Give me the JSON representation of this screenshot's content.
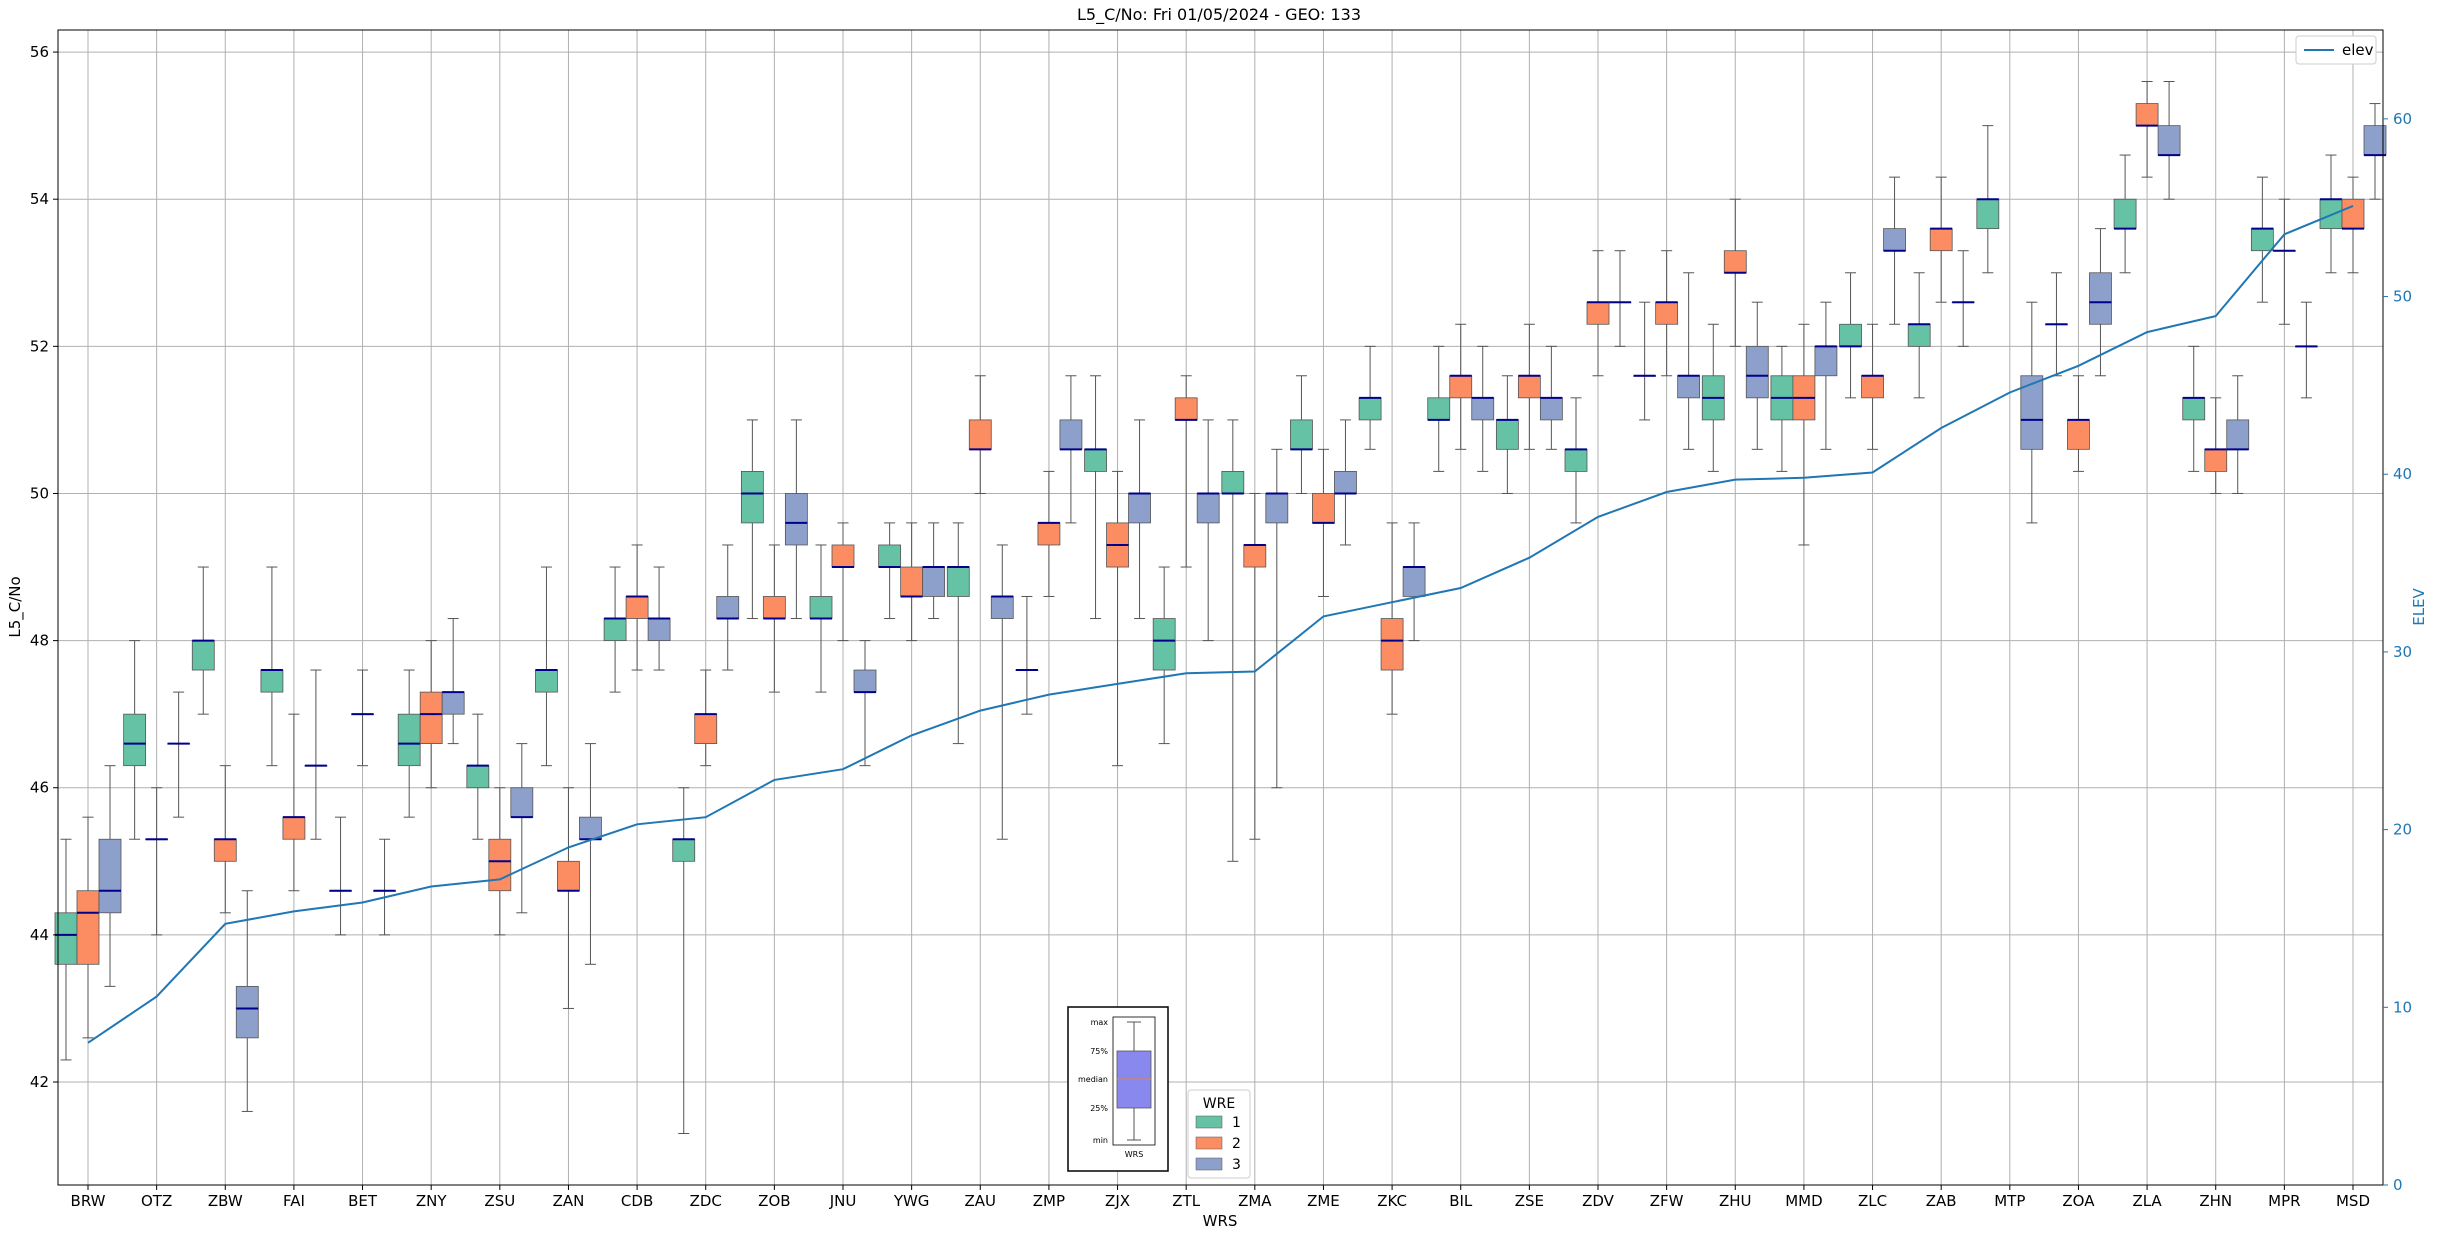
{
  "chart_data": {
    "type": "box",
    "title": "L5_C/No: Fri 01/05/2024 - GEO: 133",
    "xlabel": "WRS",
    "ylabel": "L5_C/No",
    "y2label": "ELEV",
    "ylim": [
      40.6,
      56.3
    ],
    "y2lim": [
      0,
      65
    ],
    "yticks": [
      42,
      44,
      46,
      48,
      50,
      52,
      54,
      56
    ],
    "y2ticks": [
      0,
      10,
      20,
      30,
      40,
      50,
      60
    ],
    "grid": true,
    "colors": {
      "1": "#66c2a5",
      "2": "#fc8d62",
      "3": "#8da0cb",
      "elev": "#1f77b4",
      "median": "#00008b",
      "inset_box": "#8888ee"
    },
    "categories": [
      "BRW",
      "OTZ",
      "ZBW",
      "FAI",
      "BET",
      "ZNY",
      "ZSU",
      "ZAN",
      "CDB",
      "ZDC",
      "ZOB",
      "JNU",
      "YWG",
      "ZAU",
      "ZMP",
      "ZJX",
      "ZTL",
      "ZMA",
      "ZME",
      "ZKC",
      "BIL",
      "ZSE",
      "ZDV",
      "ZFW",
      "ZHU",
      "MMD",
      "ZLC",
      "ZAB",
      "MTP",
      "ZOA",
      "ZLA",
      "ZHN",
      "MPR",
      "MSD"
    ],
    "boxes": [
      {
        "cat": "BRW",
        "wre": "1",
        "min": 42.3,
        "q1": 43.6,
        "med": 44.0,
        "q3": 44.3,
        "max": 45.3
      },
      {
        "cat": "BRW",
        "wre": "2",
        "min": 42.6,
        "q1": 43.6,
        "med": 44.3,
        "q3": 44.6,
        "max": 45.6
      },
      {
        "cat": "BRW",
        "wre": "3",
        "min": 43.3,
        "q1": 44.3,
        "med": 44.6,
        "q3": 45.3,
        "max": 46.3
      },
      {
        "cat": "OTZ",
        "wre": "1",
        "min": 45.3,
        "q1": 46.3,
        "med": 46.6,
        "q3": 47.0,
        "max": 48.0
      },
      {
        "cat": "OTZ",
        "wre": "2",
        "min": 44.0,
        "q1": 45.3,
        "med": 45.3,
        "q3": 45.3,
        "max": 46.0
      },
      {
        "cat": "OTZ",
        "wre": "3",
        "min": 45.6,
        "q1": 46.6,
        "med": 46.6,
        "q3": 46.6,
        "max": 47.3
      },
      {
        "cat": "ZBW",
        "wre": "1",
        "min": 47.0,
        "q1": 47.6,
        "med": 48.0,
        "q3": 48.0,
        "max": 49.0
      },
      {
        "cat": "ZBW",
        "wre": "2",
        "min": 44.3,
        "q1": 45.0,
        "med": 45.3,
        "q3": 45.3,
        "max": 46.3
      },
      {
        "cat": "ZBW",
        "wre": "3",
        "min": 41.6,
        "q1": 42.6,
        "med": 43.0,
        "q3": 43.3,
        "max": 44.6
      },
      {
        "cat": "FAI",
        "wre": "1",
        "min": 46.3,
        "q1": 47.3,
        "med": 47.6,
        "q3": 47.6,
        "max": 49.0
      },
      {
        "cat": "FAI",
        "wre": "2",
        "min": 44.6,
        "q1": 45.3,
        "med": 45.6,
        "q3": 45.6,
        "max": 47.0
      },
      {
        "cat": "FAI",
        "wre": "3",
        "min": 45.3,
        "q1": 46.3,
        "med": 46.3,
        "q3": 46.3,
        "max": 47.6
      },
      {
        "cat": "BET",
        "wre": "1",
        "min": 44.0,
        "q1": 44.6,
        "med": 44.6,
        "q3": 44.6,
        "max": 45.6
      },
      {
        "cat": "BET",
        "wre": "2",
        "min": 46.3,
        "q1": 47.0,
        "med": 47.0,
        "q3": 47.0,
        "max": 47.6
      },
      {
        "cat": "BET",
        "wre": "3",
        "min": 44.0,
        "q1": 44.6,
        "med": 44.6,
        "q3": 44.6,
        "max": 45.3
      },
      {
        "cat": "ZNY",
        "wre": "1",
        "min": 45.6,
        "q1": 46.3,
        "med": 46.6,
        "q3": 47.0,
        "max": 47.6
      },
      {
        "cat": "ZNY",
        "wre": "2",
        "min": 46.0,
        "q1": 46.6,
        "med": 47.0,
        "q3": 47.3,
        "max": 48.0
      },
      {
        "cat": "ZNY",
        "wre": "3",
        "min": 46.6,
        "q1": 47.0,
        "med": 47.3,
        "q3": 47.3,
        "max": 48.3
      },
      {
        "cat": "ZSU",
        "wre": "1",
        "min": 45.3,
        "q1": 46.0,
        "med": 46.3,
        "q3": 46.3,
        "max": 47.0
      },
      {
        "cat": "ZSU",
        "wre": "2",
        "min": 44.0,
        "q1": 44.6,
        "med": 45.0,
        "q3": 45.3,
        "max": 46.0
      },
      {
        "cat": "ZSU",
        "wre": "3",
        "min": 44.3,
        "q1": 45.6,
        "med": 45.6,
        "q3": 46.0,
        "max": 46.6
      },
      {
        "cat": "ZAN",
        "wre": "1",
        "min": 46.3,
        "q1": 47.3,
        "med": 47.6,
        "q3": 47.6,
        "max": 49.0
      },
      {
        "cat": "ZAN",
        "wre": "2",
        "min": 43.0,
        "q1": 44.6,
        "med": 44.6,
        "q3": 45.0,
        "max": 46.0
      },
      {
        "cat": "ZAN",
        "wre": "3",
        "min": 43.6,
        "q1": 45.3,
        "med": 45.3,
        "q3": 45.6,
        "max": 46.6
      },
      {
        "cat": "CDB",
        "wre": "1",
        "min": 47.3,
        "q1": 48.0,
        "med": 48.3,
        "q3": 48.3,
        "max": 49.0
      },
      {
        "cat": "CDB",
        "wre": "2",
        "min": 47.6,
        "q1": 48.3,
        "med": 48.6,
        "q3": 48.6,
        "max": 49.3
      },
      {
        "cat": "CDB",
        "wre": "3",
        "min": 47.6,
        "q1": 48.0,
        "med": 48.3,
        "q3": 48.3,
        "max": 49.0
      },
      {
        "cat": "ZDC",
        "wre": "1",
        "min": 41.3,
        "q1": 45.0,
        "med": 45.3,
        "q3": 45.3,
        "max": 46.0
      },
      {
        "cat": "ZDC",
        "wre": "2",
        "min": 46.3,
        "q1": 46.6,
        "med": 47.0,
        "q3": 47.0,
        "max": 47.6
      },
      {
        "cat": "ZDC",
        "wre": "3",
        "min": 47.6,
        "q1": 48.3,
        "med": 48.3,
        "q3": 48.6,
        "max": 49.3
      },
      {
        "cat": "ZOB",
        "wre": "1",
        "min": 48.3,
        "q1": 49.6,
        "med": 50.0,
        "q3": 50.3,
        "max": 51.0
      },
      {
        "cat": "ZOB",
        "wre": "2",
        "min": 47.3,
        "q1": 48.3,
        "med": 48.3,
        "q3": 48.6,
        "max": 49.3
      },
      {
        "cat": "ZOB",
        "wre": "3",
        "min": 48.3,
        "q1": 49.3,
        "med": 49.6,
        "q3": 50.0,
        "max": 51.0
      },
      {
        "cat": "JNU",
        "wre": "1",
        "min": 47.3,
        "q1": 48.3,
        "med": 48.3,
        "q3": 48.6,
        "max": 49.3
      },
      {
        "cat": "JNU",
        "wre": "2",
        "min": 48.0,
        "q1": 49.0,
        "med": 49.0,
        "q3": 49.3,
        "max": 49.6
      },
      {
        "cat": "JNU",
        "wre": "3",
        "min": 46.3,
        "q1": 47.3,
        "med": 47.3,
        "q3": 47.6,
        "max": 48.0
      },
      {
        "cat": "YWG",
        "wre": "1",
        "min": 48.3,
        "q1": 49.0,
        "med": 49.0,
        "q3": 49.3,
        "max": 49.6
      },
      {
        "cat": "YWG",
        "wre": "2",
        "min": 48.0,
        "q1": 48.6,
        "med": 48.6,
        "q3": 49.0,
        "max": 49.6
      },
      {
        "cat": "YWG",
        "wre": "3",
        "min": 48.3,
        "q1": 48.6,
        "med": 49.0,
        "q3": 49.0,
        "max": 49.6
      },
      {
        "cat": "ZAU",
        "wre": "1",
        "min": 46.6,
        "q1": 48.6,
        "med": 49.0,
        "q3": 49.0,
        "max": 49.6
      },
      {
        "cat": "ZAU",
        "wre": "2",
        "min": 50.0,
        "q1": 50.6,
        "med": 50.6,
        "q3": 51.0,
        "max": 51.6
      },
      {
        "cat": "ZAU",
        "wre": "3",
        "min": 45.3,
        "q1": 48.3,
        "med": 48.6,
        "q3": 48.6,
        "max": 49.3
      },
      {
        "cat": "ZMP",
        "wre": "1",
        "min": 47.0,
        "q1": 47.6,
        "med": 47.6,
        "q3": 47.6,
        "max": 48.6
      },
      {
        "cat": "ZMP",
        "wre": "2",
        "min": 48.6,
        "q1": 49.3,
        "med": 49.6,
        "q3": 49.6,
        "max": 50.3
      },
      {
        "cat": "ZMP",
        "wre": "3",
        "min": 49.6,
        "q1": 50.6,
        "med": 50.6,
        "q3": 51.0,
        "max": 51.6
      },
      {
        "cat": "ZJX",
        "wre": "1",
        "min": 48.3,
        "q1": 50.3,
        "med": 50.6,
        "q3": 50.6,
        "max": 51.6
      },
      {
        "cat": "ZJX",
        "wre": "2",
        "min": 46.3,
        "q1": 49.0,
        "med": 49.3,
        "q3": 49.6,
        "max": 50.3
      },
      {
        "cat": "ZJX",
        "wre": "3",
        "min": 48.3,
        "q1": 49.6,
        "med": 50.0,
        "q3": 50.0,
        "max": 51.0
      },
      {
        "cat": "ZTL",
        "wre": "1",
        "min": 46.6,
        "q1": 47.6,
        "med": 48.0,
        "q3": 48.3,
        "max": 49.0
      },
      {
        "cat": "ZTL",
        "wre": "2",
        "min": 49.0,
        "q1": 51.0,
        "med": 51.0,
        "q3": 51.3,
        "max": 51.6
      },
      {
        "cat": "ZTL",
        "wre": "3",
        "min": 48.0,
        "q1": 49.6,
        "med": 50.0,
        "q3": 50.0,
        "max": 51.0
      },
      {
        "cat": "ZMA",
        "wre": "1",
        "min": 45.0,
        "q1": 50.0,
        "med": 50.0,
        "q3": 50.3,
        "max": 51.0
      },
      {
        "cat": "ZMA",
        "wre": "2",
        "min": 45.3,
        "q1": 49.0,
        "med": 49.3,
        "q3": 49.3,
        "max": 50.0
      },
      {
        "cat": "ZMA",
        "wre": "3",
        "min": 46.0,
        "q1": 49.6,
        "med": 50.0,
        "q3": 50.0,
        "max": 50.6
      },
      {
        "cat": "ZME",
        "wre": "1",
        "min": 50.0,
        "q1": 50.6,
        "med": 50.6,
        "q3": 51.0,
        "max": 51.6
      },
      {
        "cat": "ZME",
        "wre": "2",
        "min": 48.6,
        "q1": 49.6,
        "med": 49.6,
        "q3": 50.0,
        "max": 50.6
      },
      {
        "cat": "ZME",
        "wre": "3",
        "min": 49.3,
        "q1": 50.0,
        "med": 50.0,
        "q3": 50.3,
        "max": 51.0
      },
      {
        "cat": "ZKC",
        "wre": "1",
        "min": 50.6,
        "q1": 51.0,
        "med": 51.3,
        "q3": 51.3,
        "max": 52.0
      },
      {
        "cat": "ZKC",
        "wre": "2",
        "min": 47.0,
        "q1": 47.6,
        "med": 48.0,
        "q3": 48.3,
        "max": 49.6
      },
      {
        "cat": "ZKC",
        "wre": "3",
        "min": 48.0,
        "q1": 48.6,
        "med": 49.0,
        "q3": 49.0,
        "max": 49.6
      },
      {
        "cat": "BIL",
        "wre": "1",
        "min": 50.3,
        "q1": 51.0,
        "med": 51.0,
        "q3": 51.3,
        "max": 52.0
      },
      {
        "cat": "BIL",
        "wre": "2",
        "min": 50.6,
        "q1": 51.3,
        "med": 51.6,
        "q3": 51.6,
        "max": 52.3
      },
      {
        "cat": "BIL",
        "wre": "3",
        "min": 50.3,
        "q1": 51.0,
        "med": 51.3,
        "q3": 51.3,
        "max": 52.0
      },
      {
        "cat": "ZSE",
        "wre": "1",
        "min": 50.0,
        "q1": 50.6,
        "med": 51.0,
        "q3": 51.0,
        "max": 51.6
      },
      {
        "cat": "ZSE",
        "wre": "2",
        "min": 50.6,
        "q1": 51.3,
        "med": 51.6,
        "q3": 51.6,
        "max": 52.3
      },
      {
        "cat": "ZSE",
        "wre": "3",
        "min": 50.6,
        "q1": 51.0,
        "med": 51.3,
        "q3": 51.3,
        "max": 52.0
      },
      {
        "cat": "ZDV",
        "wre": "1",
        "min": 49.6,
        "q1": 50.3,
        "med": 50.6,
        "q3": 50.6,
        "max": 51.3
      },
      {
        "cat": "ZDV",
        "wre": "2",
        "min": 51.6,
        "q1": 52.3,
        "med": 52.6,
        "q3": 52.6,
        "max": 53.3
      },
      {
        "cat": "ZDV",
        "wre": "3",
        "min": 52.0,
        "q1": 52.6,
        "med": 52.6,
        "q3": 52.6,
        "max": 53.3
      },
      {
        "cat": "ZFW",
        "wre": "1",
        "min": 51.0,
        "q1": 51.6,
        "med": 51.6,
        "q3": 51.6,
        "max": 52.6
      },
      {
        "cat": "ZFW",
        "wre": "2",
        "min": 51.6,
        "q1": 52.3,
        "med": 52.6,
        "q3": 52.6,
        "max": 53.3
      },
      {
        "cat": "ZFW",
        "wre": "3",
        "min": 50.6,
        "q1": 51.3,
        "med": 51.6,
        "q3": 51.6,
        "max": 53.0
      },
      {
        "cat": "ZHU",
        "wre": "1",
        "min": 50.3,
        "q1": 51.0,
        "med": 51.3,
        "q3": 51.6,
        "max": 52.3
      },
      {
        "cat": "ZHU",
        "wre": "2",
        "min": 52.0,
        "q1": 53.0,
        "med": 53.0,
        "q3": 53.3,
        "max": 54.0
      },
      {
        "cat": "ZHU",
        "wre": "3",
        "min": 50.6,
        "q1": 51.3,
        "med": 51.6,
        "q3": 52.0,
        "max": 52.6
      },
      {
        "cat": "MMD",
        "wre": "1",
        "min": 50.3,
        "q1": 51.0,
        "med": 51.3,
        "q3": 51.6,
        "max": 52.0
      },
      {
        "cat": "MMD",
        "wre": "2",
        "min": 49.3,
        "q1": 51.0,
        "med": 51.3,
        "q3": 51.6,
        "max": 52.3
      },
      {
        "cat": "MMD",
        "wre": "3",
        "min": 50.6,
        "q1": 51.6,
        "med": 52.0,
        "q3": 52.0,
        "max": 52.6
      },
      {
        "cat": "ZLC",
        "wre": "1",
        "min": 51.3,
        "q1": 52.0,
        "med": 52.0,
        "q3": 52.3,
        "max": 53.0
      },
      {
        "cat": "ZLC",
        "wre": "2",
        "min": 50.6,
        "q1": 51.3,
        "med": 51.6,
        "q3": 51.6,
        "max": 52.3
      },
      {
        "cat": "ZLC",
        "wre": "3",
        "min": 52.3,
        "q1": 53.3,
        "med": 53.3,
        "q3": 53.6,
        "max": 54.3
      },
      {
        "cat": "ZAB",
        "wre": "1",
        "min": 51.3,
        "q1": 52.0,
        "med": 52.3,
        "q3": 52.3,
        "max": 53.0
      },
      {
        "cat": "ZAB",
        "wre": "2",
        "min": 52.6,
        "q1": 53.3,
        "med": 53.6,
        "q3": 53.6,
        "max": 54.3
      },
      {
        "cat": "ZAB",
        "wre": "3",
        "min": 52.0,
        "q1": 52.6,
        "med": 52.6,
        "q3": 52.6,
        "max": 53.3
      },
      {
        "cat": "MTP",
        "wre": "1",
        "min": 53.0,
        "q1": 53.6,
        "med": 54.0,
        "q3": 54.0,
        "max": 55.0
      },
      {
        "cat": "MTP",
        "wre": "2",
        "min": 0,
        "q1": 0,
        "med": 0,
        "q3": 0,
        "max": 0,
        "empty": true
      },
      {
        "cat": "MTP",
        "wre": "3",
        "min": 49.6,
        "q1": 50.6,
        "med": 51.0,
        "q3": 51.6,
        "max": 52.6
      },
      {
        "cat": "ZOA",
        "wre": "1",
        "min": 51.6,
        "q1": 52.3,
        "med": 52.3,
        "q3": 52.3,
        "max": 53.0
      },
      {
        "cat": "ZOA",
        "wre": "2",
        "min": 50.3,
        "q1": 50.6,
        "med": 51.0,
        "q3": 51.0,
        "max": 51.6
      },
      {
        "cat": "ZOA",
        "wre": "3",
        "min": 51.6,
        "q1": 52.3,
        "med": 52.6,
        "q3": 53.0,
        "max": 53.6
      },
      {
        "cat": "ZLA",
        "wre": "1",
        "min": 53.0,
        "q1": 53.6,
        "med": 53.6,
        "q3": 54.0,
        "max": 54.6
      },
      {
        "cat": "ZLA",
        "wre": "2",
        "min": 54.3,
        "q1": 55.0,
        "med": 55.0,
        "q3": 55.3,
        "max": 55.6
      },
      {
        "cat": "ZLA",
        "wre": "3",
        "min": 54.0,
        "q1": 54.6,
        "med": 54.6,
        "q3": 55.0,
        "max": 55.6
      },
      {
        "cat": "ZHN",
        "wre": "1",
        "min": 50.3,
        "q1": 51.0,
        "med": 51.3,
        "q3": 51.3,
        "max": 52.0
      },
      {
        "cat": "ZHN",
        "wre": "2",
        "min": 50.0,
        "q1": 50.3,
        "med": 50.6,
        "q3": 50.6,
        "max": 51.3
      },
      {
        "cat": "ZHN",
        "wre": "3",
        "min": 50.0,
        "q1": 50.6,
        "med": 50.6,
        "q3": 51.0,
        "max": 51.6
      },
      {
        "cat": "MPR",
        "wre": "1",
        "min": 52.6,
        "q1": 53.3,
        "med": 53.6,
        "q3": 53.6,
        "max": 54.3
      },
      {
        "cat": "MPR",
        "wre": "2",
        "min": 52.3,
        "q1": 53.3,
        "med": 53.3,
        "q3": 53.3,
        "max": 54.0
      },
      {
        "cat": "MPR",
        "wre": "3",
        "min": 51.3,
        "q1": 52.0,
        "med": 52.0,
        "q3": 52.0,
        "max": 52.6
      },
      {
        "cat": "MSD",
        "wre": "1",
        "min": 53.0,
        "q1": 53.6,
        "med": 54.0,
        "q3": 54.0,
        "max": 54.6
      },
      {
        "cat": "MSD",
        "wre": "2",
        "min": 53.0,
        "q1": 53.6,
        "med": 53.6,
        "q3": 54.0,
        "max": 54.3
      },
      {
        "cat": "MSD",
        "wre": "3",
        "min": 54.0,
        "q1": 54.6,
        "med": 54.6,
        "q3": 55.0,
        "max": 55.3
      }
    ],
    "elev": [
      8.0,
      10.6,
      14.7,
      15.4,
      15.9,
      16.8,
      17.2,
      19.0,
      20.3,
      20.7,
      22.8,
      23.4,
      25.3,
      26.7,
      27.6,
      28.2,
      28.8,
      28.9,
      32.0,
      32.8,
      33.6,
      35.3,
      37.6,
      39.0,
      39.7,
      39.8,
      40.1,
      42.6,
      44.6,
      46.1,
      48.0,
      48.9,
      53.5,
      55.1
    ],
    "legend_elev": "elev",
    "legend_wre": {
      "title": "WRE",
      "labels": [
        "1",
        "2",
        "3"
      ]
    },
    "inset": {
      "labels": [
        "max",
        "75%",
        "median",
        "25%",
        "min"
      ],
      "xlabel": "WRS"
    }
  }
}
